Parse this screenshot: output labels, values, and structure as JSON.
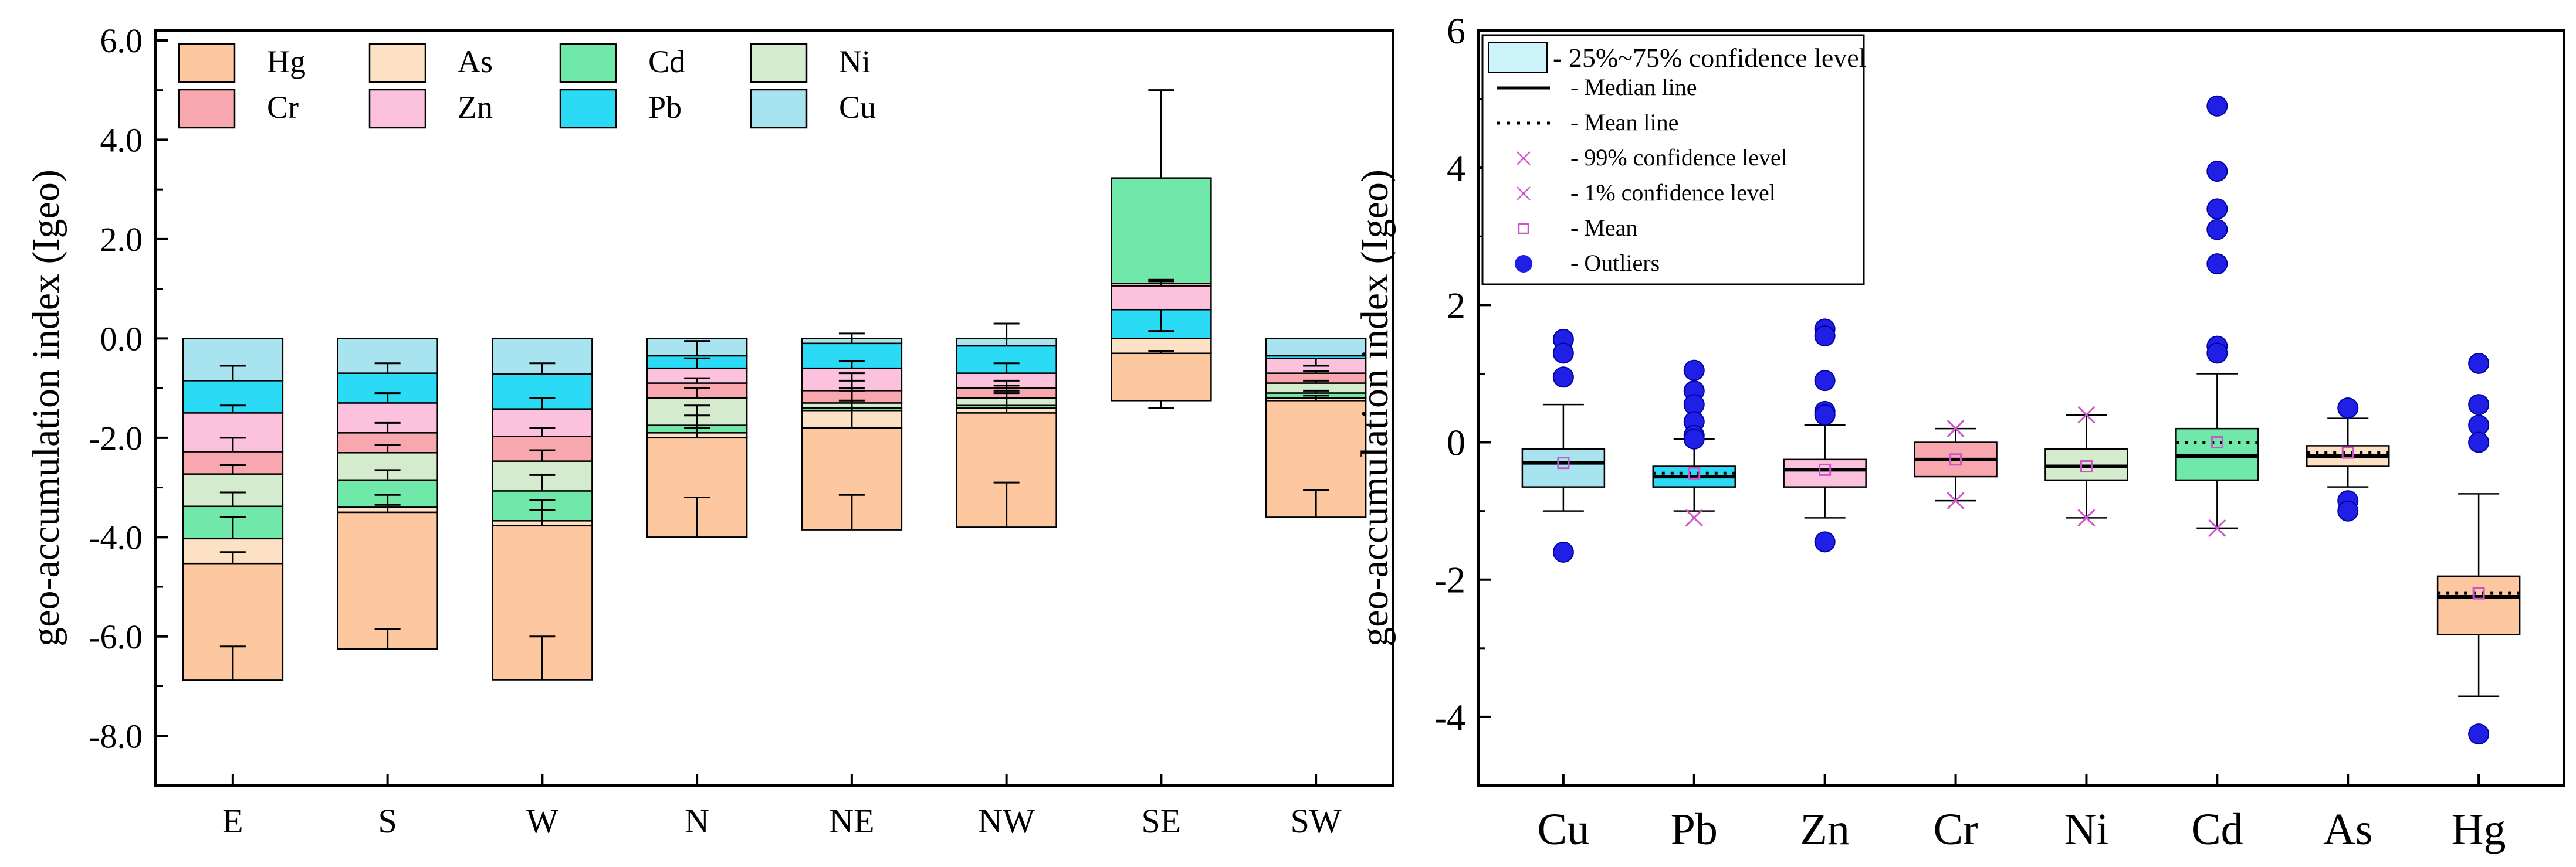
{
  "colors": {
    "Hg": "#fdc79f",
    "As": "#fde1c4",
    "Cd": "#6fe8a9",
    "Ni": "#d4ebcd",
    "Cr": "#f7a7ad",
    "Zn": "#fbc1dd",
    "Pb": "#2bdaf5",
    "Cu": "#a8e4f0",
    "outlier": "#1f1fe6",
    "marker": "#cc55cc"
  },
  "chart_data": [
    {
      "type": "bar",
      "subtype": "stacked-negative",
      "ylabel": "geo-accumulation index (Igeo)",
      "ylim": [
        -9,
        6.2
      ],
      "yticks": [
        -8,
        -6,
        -4,
        -2,
        0,
        2,
        4,
        6
      ],
      "ytick_labels": [
        "-8.0",
        "-6.0",
        "-4.0",
        "-2.0",
        "0.0",
        "2.0",
        "4.0",
        "6.0"
      ],
      "categories": [
        "E",
        "S",
        "W",
        "N",
        "NE",
        "NW",
        "SE",
        "SW"
      ],
      "legend": {
        "position": "top-left",
        "entries": [
          "Hg",
          "As",
          "Cd",
          "Ni",
          "Cr",
          "Zn",
          "Pb",
          "Cu"
        ]
      },
      "stack_order": [
        "Cu",
        "Pb",
        "Zn",
        "Cr",
        "Ni",
        "Cd",
        "As",
        "Hg"
      ],
      "positive_stack_order": [
        "Cu",
        "Pb",
        "Zn",
        "Cr",
        "Ni",
        "Cd"
      ],
      "series": [
        {
          "name": "Cu",
          "values": [
            -0.85,
            -0.7,
            -0.72,
            -0.35,
            -0.1,
            -0.15,
            0.0,
            -0.35
          ],
          "error_tops": [
            -0.55,
            -0.5,
            -0.5,
            -0.05,
            0.1,
            0.3,
            0.0,
            -0.35
          ]
        },
        {
          "name": "Pb",
          "values": [
            -0.65,
            -0.6,
            -0.7,
            -0.25,
            -0.5,
            -0.55,
            0.58,
            -0.05
          ],
          "error_tops": [
            -1.35,
            -1.1,
            -1.2,
            -0.4,
            -0.45,
            -0.5,
            0.15,
            -0.55
          ]
        },
        {
          "name": "Zn",
          "values": [
            -0.78,
            -0.6,
            -0.55,
            -0.3,
            -0.45,
            -0.3,
            0.48,
            -0.3
          ],
          "error_tops": [
            -2.0,
            -1.7,
            -1.8,
            -0.8,
            -0.7,
            -0.85,
            1.15,
            -0.65
          ]
        },
        {
          "name": "Cr",
          "values": [
            -0.45,
            -0.4,
            -0.5,
            -0.3,
            -0.25,
            -0.2,
            0.05,
            -0.2
          ],
          "error_tops": [
            -2.55,
            -2.15,
            -2.25,
            -1.0,
            -0.85,
            -0.95,
            1.18,
            -0.85
          ]
        },
        {
          "name": "Ni",
          "values": [
            -0.65,
            -0.55,
            -0.6,
            -0.55,
            -0.1,
            -0.15,
            0.0,
            -0.2
          ],
          "error_tops": [
            -3.1,
            -2.65,
            -2.75,
            -1.35,
            -1.0,
            -1.05,
            1.18,
            -1.05
          ]
        },
        {
          "name": "Cd",
          "values": [
            -0.65,
            -0.55,
            -0.6,
            -0.15,
            -0.05,
            -0.05,
            2.12,
            -0.1
          ],
          "error_tops": [
            -3.6,
            -3.15,
            -3.25,
            -1.55,
            -1.05,
            -1.1,
            5.0,
            -1.15
          ]
        },
        {
          "name": "As",
          "values": [
            -0.5,
            -0.1,
            -0.1,
            -0.1,
            -0.35,
            -0.1,
            -0.3,
            -0.05
          ],
          "error_tops": [
            -4.3,
            -3.35,
            -3.45,
            -1.8,
            -1.25,
            -1.2,
            -0.25,
            -1.2
          ]
        },
        {
          "name": "Hg",
          "values": [
            -2.35,
            -2.75,
            -3.1,
            -2.0,
            -2.05,
            -2.3,
            -0.95,
            -2.35
          ],
          "error_tops": [
            -6.2,
            -5.85,
            -6.0,
            -3.2,
            -3.15,
            -2.9,
            -1.4,
            -3.05
          ]
        }
      ]
    },
    {
      "type": "box",
      "ylabel": "geo-accumulation index (Igeo)",
      "ylim": [
        -5,
        6
      ],
      "yticks": [
        -4,
        -2,
        0,
        2,
        4,
        6
      ],
      "ytick_labels": [
        "-4",
        "-2",
        "0",
        "2",
        "4",
        "6"
      ],
      "categories": [
        "Cu",
        "Pb",
        "Zn",
        "Cr",
        "Ni",
        "Cd",
        "As",
        "Hg"
      ],
      "legend": {
        "position": "top-left",
        "entries": [
          "- 25%~75% confidence level",
          "- Median line",
          "- Mean line",
          "- 99% confidence level",
          "- 1% confidence level",
          "- Mean",
          "- Outliers"
        ]
      },
      "boxes": [
        {
          "name": "Cu",
          "q1": -0.65,
          "median": -0.3,
          "mean": -0.3,
          "q3": -0.1,
          "whisker_low": -1.0,
          "whisker_high": 0.55,
          "p1": null,
          "p99": null,
          "outliers": [
            1.5,
            1.3,
            0.95,
            -1.6
          ]
        },
        {
          "name": "Pb",
          "q1": -0.65,
          "median": -0.5,
          "mean": -0.45,
          "q3": -0.35,
          "whisker_low": -1.0,
          "whisker_high": 0.05,
          "p1": -1.1,
          "p99": null,
          "outliers": [
            1.05,
            0.75,
            0.55,
            0.3,
            0.1,
            0.05
          ]
        },
        {
          "name": "Zn",
          "q1": -0.65,
          "median": -0.4,
          "mean": -0.4,
          "q3": -0.25,
          "whisker_low": -1.1,
          "whisker_high": 0.25,
          "p1": null,
          "p99": null,
          "outliers": [
            1.65,
            1.55,
            0.9,
            0.45,
            0.4,
            -1.45
          ]
        },
        {
          "name": "Cr",
          "q1": -0.5,
          "median": -0.25,
          "mean": -0.25,
          "q3": 0.0,
          "whisker_low": -0.85,
          "whisker_high": 0.2,
          "p1": -0.85,
          "p99": 0.2,
          "outliers": []
        },
        {
          "name": "Ni",
          "q1": -0.55,
          "median": -0.35,
          "mean": -0.35,
          "q3": -0.1,
          "whisker_low": -1.1,
          "whisker_high": 0.4,
          "p1": -1.1,
          "p99": 0.4,
          "outliers": []
        },
        {
          "name": "Cd",
          "q1": -0.55,
          "median": -0.2,
          "mean": 0.0,
          "q3": 0.2,
          "whisker_low": -1.25,
          "whisker_high": 1.0,
          "p1": -1.25,
          "p99": null,
          "outliers": [
            4.9,
            3.95,
            3.4,
            3.1,
            2.6,
            1.4,
            1.3
          ]
        },
        {
          "name": "As",
          "q1": -0.35,
          "median": -0.2,
          "mean": -0.15,
          "q3": -0.05,
          "whisker_low": -0.65,
          "whisker_high": 0.35,
          "p1": null,
          "p99": null,
          "outliers": [
            0.5,
            -0.85,
            -1.0
          ]
        },
        {
          "name": "Hg",
          "q1": -2.8,
          "median": -2.25,
          "mean": -2.2,
          "q3": -1.95,
          "whisker_low": -3.7,
          "whisker_high": -0.75,
          "p1": null,
          "p99": null,
          "outliers": [
            1.15,
            0.55,
            0.25,
            0.0,
            -4.25
          ]
        }
      ]
    }
  ]
}
